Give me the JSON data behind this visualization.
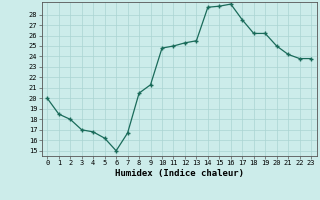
{
  "x": [
    0,
    1,
    2,
    3,
    4,
    5,
    6,
    7,
    8,
    9,
    10,
    11,
    12,
    13,
    14,
    15,
    16,
    17,
    18,
    19,
    20,
    21,
    22,
    23
  ],
  "y": [
    20.0,
    18.5,
    18.0,
    17.0,
    16.8,
    16.2,
    15.0,
    16.7,
    20.5,
    21.3,
    24.8,
    25.0,
    25.3,
    25.5,
    28.7,
    28.8,
    29.0,
    27.5,
    26.2,
    26.2,
    25.0,
    24.2,
    23.8,
    23.8
  ],
  "line_color": "#1a6b5a",
  "marker": "+",
  "marker_size": 3.5,
  "linewidth": 0.9,
  "xlabel": "Humidex (Indice chaleur)",
  "xlim": [
    -0.5,
    23.5
  ],
  "ylim": [
    14.5,
    29.2
  ],
  "yticks": [
    15,
    16,
    17,
    18,
    19,
    20,
    21,
    22,
    23,
    24,
    25,
    26,
    27,
    28
  ],
  "xticks": [
    0,
    1,
    2,
    3,
    4,
    5,
    6,
    7,
    8,
    9,
    10,
    11,
    12,
    13,
    14,
    15,
    16,
    17,
    18,
    19,
    20,
    21,
    22,
    23
  ],
  "bg_color": "#ccecea",
  "grid_color": "#aad4d2",
  "tick_fontsize": 5.0,
  "xlabel_fontsize": 6.5,
  "xlabel_bold": true
}
